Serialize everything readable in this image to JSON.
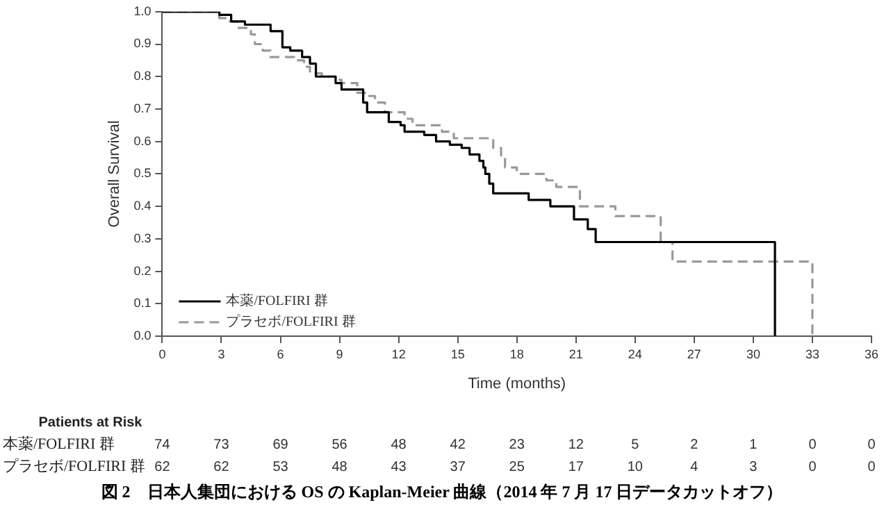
{
  "chart_data": {
    "type": "step",
    "xlabel": "Time (months)",
    "ylabel": "Overall Survival",
    "xlim": [
      0,
      36
    ],
    "xticks": [
      0,
      3,
      6,
      9,
      12,
      15,
      18,
      21,
      24,
      27,
      30,
      33,
      36
    ],
    "ylim": [
      0,
      1
    ],
    "yticks": [
      {
        "value": 0,
        "label": "0.0"
      },
      {
        "value": 0.1,
        "label": "0.1"
      },
      {
        "value": 0.2,
        "label": "0.2"
      },
      {
        "value": 0.3,
        "label": "0.3"
      },
      {
        "value": 0.4,
        "label": "0.4"
      },
      {
        "value": 0.5,
        "label": "0.5"
      },
      {
        "value": 0.6,
        "label": "0.6"
      },
      {
        "value": 0.7,
        "label": "0.7"
      },
      {
        "value": 0.8,
        "label": "0.8"
      },
      {
        "value": 0.9,
        "label": "0.9"
      },
      {
        "value": 1,
        "label": "1.0"
      }
    ],
    "grid": false,
    "legend": "bottom left",
    "marker": "none",
    "series": [
      {
        "name": "本薬/FOLFIRI 群",
        "color": "#000000",
        "line_style": "solid",
        "x": [
          0,
          2.9,
          3.5,
          4.2,
          5.5,
          6.1,
          6.5,
          7.1,
          7.5,
          7.8,
          8.8,
          9.1,
          10.2,
          10.4,
          11.5,
          12.1,
          12.3,
          13.3,
          13.9,
          14.6,
          15.2,
          15.6,
          16.1,
          16.3,
          16.4,
          16.6,
          16.8,
          18.6,
          19.7,
          20.9,
          21.6,
          22.0,
          31.1,
          31.1
        ],
        "values": [
          1,
          0.99,
          0.97,
          0.96,
          0.94,
          0.89,
          0.88,
          0.86,
          0.84,
          0.8,
          0.78,
          0.76,
          0.72,
          0.69,
          0.66,
          0.65,
          0.63,
          0.62,
          0.6,
          0.59,
          0.58,
          0.56,
          0.54,
          0.52,
          0.5,
          0.47,
          0.44,
          0.42,
          0.4,
          0.36,
          0.33,
          0.29,
          0.29,
          0
        ]
      },
      {
        "name": "プラセボ/FOLFIRI 群",
        "color": "#999999",
        "line_style": "dashed",
        "x": [
          0,
          2.9,
          3.3,
          3.8,
          4.5,
          4.7,
          5.1,
          5.5,
          6.7,
          7.2,
          7.5,
          8.1,
          8.8,
          9.1,
          9.9,
          10.4,
          10.8,
          11.3,
          12.3,
          12.7,
          14.2,
          14.8,
          16.8,
          17.2,
          17.4,
          18.0,
          19.5,
          20.0,
          21.2,
          23.0,
          25.3,
          25.9,
          33.0,
          33.0
        ],
        "values": [
          1,
          0.98,
          0.97,
          0.95,
          0.93,
          0.9,
          0.88,
          0.86,
          0.85,
          0.83,
          0.81,
          0.8,
          0.79,
          0.78,
          0.75,
          0.74,
          0.72,
          0.69,
          0.67,
          0.65,
          0.63,
          0.61,
          0.58,
          0.55,
          0.52,
          0.5,
          0.48,
          0.46,
          0.4,
          0.37,
          0.29,
          0.23,
          0.23,
          0
        ]
      }
    ],
    "annotations": [
      "Patients at Risk",
      "74 73 69 56 48 42 23 12 5 2 1 0 0",
      "62 62 53 48 43 37 25 17 10 4 3 0 0",
      "図 2　日本人集団における OS の Kaplan-Meier 曲線（2014 年 7 月 17 日データカットオフ）"
    ]
  }
}
